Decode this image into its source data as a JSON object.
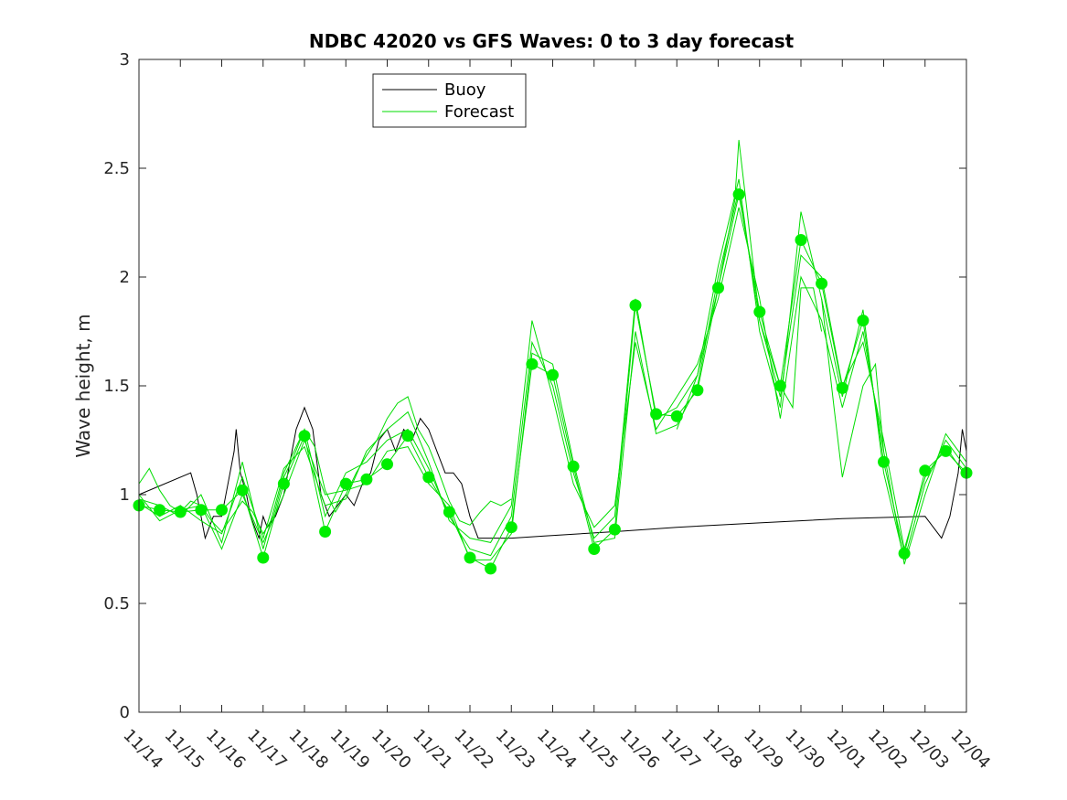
{
  "chart_data": {
    "type": "line",
    "title": "NDBC 42020 vs GFS Waves: 0 to 3 day forecast",
    "xlabel": "",
    "ylabel": "Wave height, m",
    "xlim": [
      0,
      20
    ],
    "ylim": [
      0,
      3
    ],
    "yticks": [
      0,
      0.5,
      1,
      1.5,
      2,
      2.5,
      3
    ],
    "ytick_labels": [
      "0",
      "0.5",
      "1",
      "1.5",
      "2",
      "2.5",
      "3"
    ],
    "x_tick_labels": [
      "11/14",
      "11/15",
      "11/16",
      "11/17",
      "11/18",
      "11/19",
      "11/20",
      "11/21",
      "11/22",
      "11/23",
      "11/24",
      "11/25",
      "11/26",
      "11/27",
      "11/28",
      "11/29",
      "11/30",
      "12/01",
      "12/02",
      "12/03",
      "12/04"
    ],
    "legend": {
      "position": "top-left-inside",
      "entries": [
        {
          "label": "Buoy",
          "color": "#000000"
        },
        {
          "label": "Forecast",
          "color": "#00dd00"
        }
      ]
    },
    "colors": {
      "buoy": "#000000",
      "forecast": "#00dd00",
      "marker": "#00ee00"
    },
    "series": [
      {
        "name": "Buoy",
        "x": [
          0,
          1.25,
          1.4,
          1.5,
          1.55,
          1.6,
          1.7,
          1.8,
          2.0,
          2.2,
          2.3,
          2.35,
          2.45,
          2.6,
          2.7,
          2.8,
          2.9,
          3.0,
          3.1,
          3.3,
          3.5,
          3.7,
          3.8,
          3.9,
          4.0,
          4.2,
          4.4,
          4.6,
          4.8,
          5.0,
          5.2,
          5.4,
          5.6,
          5.8,
          6.0,
          6.2,
          6.4,
          6.6,
          6.8,
          7.0,
          7.2,
          7.4,
          7.6,
          7.8,
          8.0,
          8.2,
          8.4,
          8.5,
          8.6,
          8.75,
          9.0,
          9.8,
          11.5,
          13.0,
          15.0,
          17.0,
          19.0,
          19.2,
          19.4,
          19.5,
          19.6,
          19.8,
          19.9,
          20.0
        ],
        "y": [
          1.0,
          1.1,
          1.0,
          0.9,
          0.85,
          0.8,
          0.85,
          0.9,
          0.9,
          1.1,
          1.2,
          1.3,
          1.1,
          1.0,
          0.9,
          0.85,
          0.8,
          0.9,
          0.85,
          0.9,
          1.0,
          1.2,
          1.3,
          1.35,
          1.4,
          1.3,
          1.0,
          0.9,
          0.95,
          1.0,
          0.95,
          1.05,
          1.1,
          1.25,
          1.3,
          1.2,
          1.3,
          1.25,
          1.35,
          1.3,
          1.2,
          1.1,
          1.1,
          1.05,
          0.9,
          0.8,
          0.8,
          0.8,
          0.8,
          0.8,
          0.8,
          0.81,
          0.83,
          0.85,
          0.87,
          0.89,
          0.9,
          0.85,
          0.8,
          0.85,
          0.9,
          1.1,
          1.3,
          1.2
        ]
      },
      {
        "name": "Forecast",
        "runs": [
          {
            "x": [
              0.0,
              0.25,
              0.5,
              0.75,
              1.0,
              1.25,
              1.5,
              1.75,
              2.0,
              2.25,
              2.5,
              2.75,
              3.0,
              3.25,
              3.5,
              3.75,
              4.0,
              4.25,
              4.5,
              4.75,
              5.0,
              5.25,
              5.5,
              5.75,
              6.0,
              6.25,
              6.5,
              6.75,
              7.0,
              7.25,
              7.5,
              7.75,
              8.0,
              8.25,
              8.5,
              8.75,
              9.0
            ],
            "y": [
              1.05,
              1.12,
              1.02,
              0.95,
              0.92,
              0.97,
              0.95,
              0.88,
              0.83,
              0.9,
              0.97,
              0.92,
              0.82,
              0.9,
              1.08,
              1.18,
              1.3,
              1.22,
              1.02,
              0.92,
              1.0,
              1.1,
              1.18,
              1.25,
              1.35,
              1.42,
              1.45,
              1.3,
              1.22,
              1.1,
              0.97,
              0.88,
              0.86,
              0.92,
              0.97,
              0.95,
              0.98
            ]
          },
          {
            "x": [
              0.0,
              0.5,
              1.0,
              1.5,
              2.0,
              2.5,
              3.0,
              3.5,
              4.0,
              4.5,
              5.0,
              5.5,
              6.0,
              6.5,
              7.0,
              7.5,
              8.0,
              8.5,
              9.0,
              9.5,
              10.0,
              10.5,
              11.0,
              11.5,
              12.0,
              12.5,
              13.0,
              13.5,
              14.0,
              14.5,
              15.0,
              15.5,
              16.0,
              16.5,
              17.0,
              17.5,
              18.0,
              18.5,
              19.0,
              19.5,
              20.0
            ],
            "y": [
              0.95,
              0.93,
              0.92,
              0.93,
              0.93,
              1.02,
              0.71,
              1.05,
              1.27,
              0.83,
              1.05,
              1.07,
              1.14,
              1.27,
              1.08,
              0.92,
              0.71,
              0.66,
              0.85,
              1.6,
              1.55,
              1.13,
              0.75,
              0.84,
              1.87,
              1.37,
              1.36,
              1.48,
              1.95,
              2.38,
              1.84,
              1.5,
              2.17,
              1.97,
              1.49,
              1.8,
              1.15,
              0.73,
              1.11,
              1.2,
              1.1
            ]
          },
          {
            "x": [
              0.0,
              0.5,
              1.0,
              1.5,
              2.0,
              2.5,
              3.0,
              3.5,
              4.0,
              4.5,
              5.0,
              5.5,
              6.0,
              6.5,
              7.0,
              7.5,
              8.0,
              8.5,
              9.0,
              9.5,
              10.0,
              10.5,
              11.0,
              11.5,
              12.0,
              12.5,
              13.0,
              13.5,
              14.0,
              14.5,
              15.0,
              15.5,
              16.0,
              16.5,
              17.0,
              17.5,
              18.0,
              18.5,
              19.0,
              19.5,
              20.0
            ],
            "y": [
              0.98,
              0.95,
              0.9,
              1.0,
              0.78,
              1.15,
              0.75,
              1.1,
              1.3,
              0.9,
              1.1,
              1.15,
              1.25,
              1.3,
              1.12,
              0.9,
              0.75,
              0.72,
              0.9,
              1.7,
              1.5,
              1.1,
              0.8,
              0.9,
              1.9,
              1.35,
              1.4,
              1.55,
              2.05,
              2.45,
              1.75,
              1.4,
              2.3,
              1.9,
              1.45,
              1.85,
              1.1,
              0.7,
              1.05,
              1.25,
              1.12
            ]
          },
          {
            "x": [
              0.0,
              0.5,
              1.0,
              1.5,
              2.0,
              2.5,
              3.0,
              3.5,
              4.0,
              4.5,
              5.0,
              5.5,
              6.0,
              6.5,
              7.0,
              7.5,
              8.0,
              8.5,
              9.0,
              9.5,
              10.0,
              10.5,
              11.0,
              11.5,
              12.0,
              12.5,
              13.0,
              13.5,
              14.0,
              14.5,
              15.0,
              15.5,
              16.0,
              16.5,
              17.0,
              17.5,
              18.0,
              18.5,
              19.0,
              19.5,
              20.0
            ],
            "y": [
              0.96,
              0.9,
              0.95,
              0.88,
              0.82,
              1.08,
              0.8,
              1.12,
              1.22,
              0.95,
              0.98,
              1.2,
              1.3,
              1.38,
              1.15,
              0.88,
              0.8,
              0.78,
              0.95,
              1.8,
              1.45,
              1.05,
              0.85,
              0.95,
              1.7,
              1.3,
              1.45,
              1.6,
              1.9,
              2.32,
              1.9,
              1.35,
              2.0,
              1.8,
              1.4,
              1.75,
              1.2,
              0.68,
              1.0,
              1.28,
              1.15
            ]
          },
          {
            "x": [
              0.0,
              0.5,
              1.0,
              1.5,
              2.0,
              2.5,
              3.0,
              3.5,
              4.0,
              4.5,
              5.0,
              5.5,
              6.0,
              6.5,
              7.0,
              7.5,
              8.0,
              8.5,
              9.0,
              9.5,
              10.0,
              10.5,
              11.0,
              11.5,
              12.0,
              12.5,
              13.0,
              13.5,
              14.0,
              14.5,
              15.0,
              15.5,
              16.0,
              16.5,
              17.0,
              17.5,
              18.0,
              18.5,
              19.0,
              19.5,
              20.0
            ],
            "y": [
              1.0,
              0.88,
              0.93,
              0.95,
              0.75,
              1.0,
              0.78,
              1.0,
              1.25,
              1.0,
              1.02,
              1.05,
              1.2,
              1.22,
              1.05,
              0.95,
              0.7,
              0.7,
              0.82,
              1.65,
              1.6,
              1.15,
              0.78,
              0.8,
              1.75,
              1.28,
              1.32,
              1.5,
              2.0,
              2.4,
              1.8,
              1.45,
              2.1,
              2.0,
              1.5,
              1.7,
              1.25,
              0.75,
              1.08,
              1.22,
              1.08
            ]
          },
          {
            "x": [
              13.0,
              13.5,
              14.0,
              14.4,
              14.5,
              14.7,
              15.0,
              15.5,
              15.8,
              16.0,
              16.3,
              16.5
            ],
            "y": [
              1.3,
              1.55,
              1.95,
              2.35,
              2.63,
              2.3,
              1.8,
              1.5,
              1.4,
              1.95,
              1.95,
              1.75
            ]
          },
          {
            "x": [
              16.5,
              16.8,
              17.0,
              17.2,
              17.5,
              17.8,
              18.0
            ],
            "y": [
              1.9,
              1.4,
              1.08,
              1.25,
              1.5,
              1.6,
              1.2
            ]
          }
        ],
        "markers": {
          "x": [
            0.0,
            0.5,
            1.0,
            1.5,
            2.0,
            2.5,
            3.0,
            3.5,
            4.0,
            4.5,
            5.0,
            5.5,
            6.0,
            6.5,
            7.0,
            7.5,
            8.0,
            8.5,
            9.0,
            9.5,
            10.0,
            10.5,
            11.0,
            11.5,
            12.0,
            12.5,
            13.0,
            13.5,
            14.0,
            14.5,
            15.0,
            15.5,
            16.0,
            16.5,
            17.0,
            17.5,
            18.0,
            18.5,
            19.0,
            19.5,
            20.0
          ],
          "y": [
            0.95,
            0.93,
            0.92,
            0.93,
            0.93,
            1.02,
            0.71,
            1.05,
            1.27,
            0.83,
            1.05,
            1.07,
            1.14,
            1.27,
            1.08,
            0.92,
            0.71,
            0.66,
            0.85,
            1.6,
            1.55,
            1.13,
            0.75,
            0.84,
            1.87,
            1.37,
            1.36,
            1.48,
            1.95,
            2.38,
            1.84,
            1.5,
            2.17,
            1.97,
            1.49,
            1.8,
            1.15,
            0.73,
            1.11,
            1.2,
            1.1
          ]
        }
      }
    ]
  }
}
